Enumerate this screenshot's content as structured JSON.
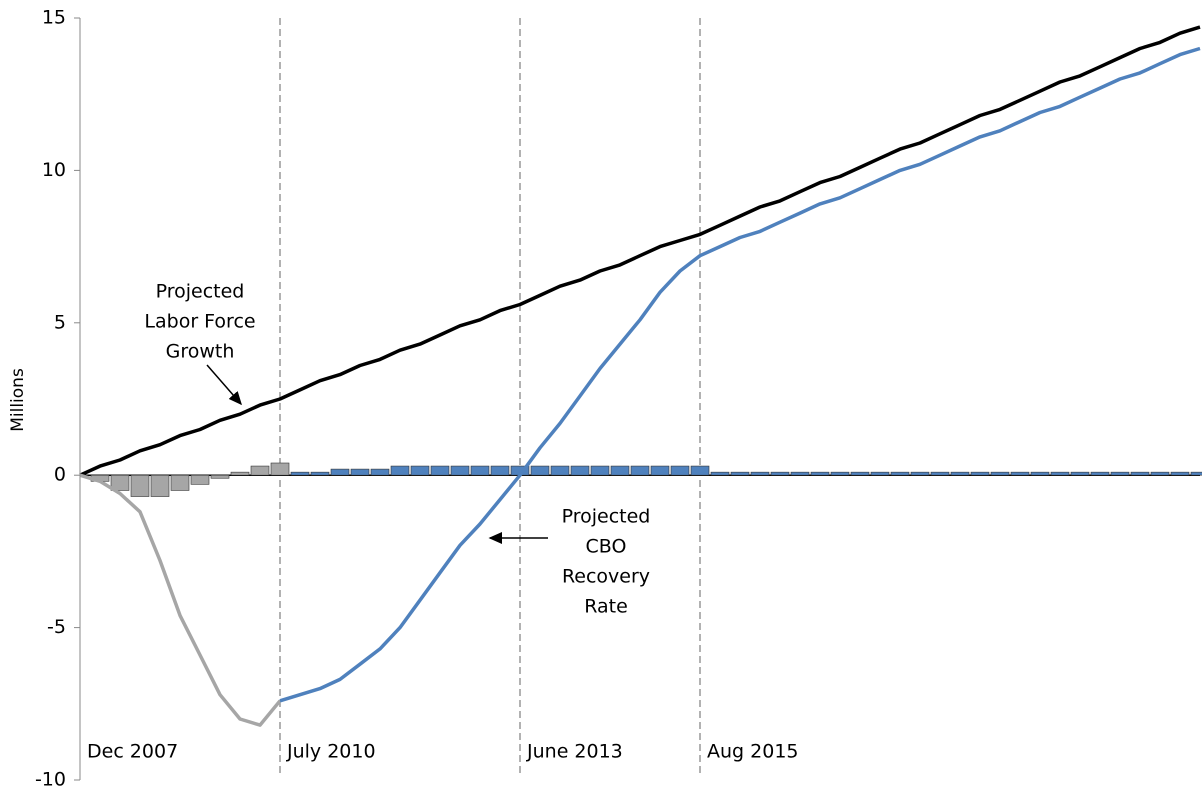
{
  "chart_data": {
    "type": "line",
    "y_label": "Millions",
    "categories": [
      "Dec 2007",
      null,
      null,
      null,
      null,
      null,
      null,
      null,
      null,
      null,
      "July 2010",
      null,
      null,
      null,
      null,
      null,
      null,
      null,
      null,
      null,
      null,
      null,
      "June 2013",
      null,
      null,
      null,
      null,
      null,
      null,
      null,
      null,
      "Aug 2015",
      null,
      null,
      null,
      null,
      null,
      null,
      null,
      null,
      null,
      null,
      null,
      null,
      null,
      null,
      null,
      null,
      null,
      null,
      null,
      null,
      null,
      null,
      null,
      null,
      null
    ],
    "ylim": [
      -10,
      15
    ],
    "yticks": [
      -10,
      -5,
      0,
      5,
      10,
      15
    ],
    "grid": false,
    "series": [
      {
        "type": "bar",
        "color": "#a6a6a6",
        "values": [
          0,
          -0.2,
          -0.5,
          -0.7,
          -0.7,
          -0.5,
          -0.3,
          -0.1,
          0.1,
          0.3,
          0.4,
          null,
          null,
          null,
          null,
          null,
          null,
          null,
          null,
          null,
          null,
          null,
          null,
          null,
          null,
          null,
          null,
          null,
          null,
          null,
          null,
          null,
          null,
          null,
          null,
          null,
          null,
          null,
          null,
          null,
          null,
          null,
          null,
          null,
          null,
          null,
          null,
          null,
          null,
          null,
          null,
          null,
          null,
          null,
          null,
          null,
          null
        ]
      },
      {
        "type": "bar",
        "color": "#4f81bd",
        "values": [
          null,
          null,
          null,
          null,
          null,
          null,
          null,
          null,
          null,
          null,
          null,
          0.1,
          0.1,
          0.2,
          0.2,
          0.2,
          0.3,
          0.3,
          0.3,
          0.3,
          0.3,
          0.3,
          0.3,
          0.3,
          0.3,
          0.3,
          0.3,
          0.3,
          0.3,
          0.3,
          0.3,
          0.3,
          0.1,
          0.1,
          0.1,
          0.1,
          0.1,
          0.1,
          0.1,
          0.1,
          0.1,
          0.1,
          0.1,
          0.1,
          0.1,
          0.1,
          0.1,
          0.1,
          0.1,
          0.1,
          0.1,
          0.1,
          0.1,
          0.1,
          0.1,
          0.1,
          0.1
        ]
      },
      {
        "type": "line",
        "color": "#000000",
        "values": [
          0,
          0.3,
          0.5,
          0.8,
          1.0,
          1.3,
          1.5,
          1.8,
          2.0,
          2.3,
          2.5,
          2.8,
          3.1,
          3.3,
          3.6,
          3.8,
          4.1,
          4.3,
          4.6,
          4.9,
          5.1,
          5.4,
          5.6,
          5.9,
          6.2,
          6.4,
          6.7,
          6.9,
          7.2,
          7.5,
          7.7,
          7.9,
          8.2,
          8.5,
          8.8,
          9.0,
          9.3,
          9.6,
          9.8,
          10.1,
          10.4,
          10.7,
          10.9,
          11.2,
          11.5,
          11.8,
          12.0,
          12.3,
          12.6,
          12.9,
          13.1,
          13.4,
          13.7,
          14.0,
          14.2,
          14.5,
          14.7
        ]
      },
      {
        "type": "line",
        "color": "#a6a6a6",
        "values": [
          0,
          -0.2,
          -0.6,
          -1.2,
          -2.8,
          -4.6,
          -5.9,
          -7.2,
          -8.0,
          -8.2,
          -7.4,
          null,
          null,
          null,
          null,
          null,
          null,
          null,
          null,
          null,
          null,
          null,
          null,
          null,
          null,
          null,
          null,
          null,
          null,
          null,
          null,
          null,
          null,
          null,
          null,
          null,
          null,
          null,
          null,
          null,
          null,
          null,
          null,
          null,
          null,
          null,
          null,
          null,
          null,
          null,
          null,
          null,
          null,
          null,
          null,
          null,
          null
        ]
      },
      {
        "type": "line",
        "color": "#4f81bd",
        "values": [
          null,
          null,
          null,
          null,
          null,
          null,
          null,
          null,
          null,
          null,
          -7.4,
          -7.2,
          -7.0,
          -6.7,
          -6.2,
          -5.7,
          -5.0,
          -4.1,
          -3.2,
          -2.3,
          -1.6,
          -0.8,
          0.0,
          0.9,
          1.7,
          2.6,
          3.5,
          4.3,
          5.1,
          6.0,
          6.7,
          7.2,
          7.5,
          7.8,
          8.0,
          8.3,
          8.6,
          8.9,
          9.1,
          9.4,
          9.7,
          10.0,
          10.2,
          10.5,
          10.8,
          11.1,
          11.3,
          11.6,
          11.9,
          12.1,
          12.4,
          12.7,
          13.0,
          13.2,
          13.5,
          13.8,
          14.0
        ]
      }
    ],
    "annotations": [
      {
        "lines": [
          "Projected",
          "Labor Force",
          "Growth"
        ]
      },
      {
        "lines": [
          "Projected",
          "CBO",
          "Recovery",
          "Rate"
        ]
      }
    ]
  }
}
